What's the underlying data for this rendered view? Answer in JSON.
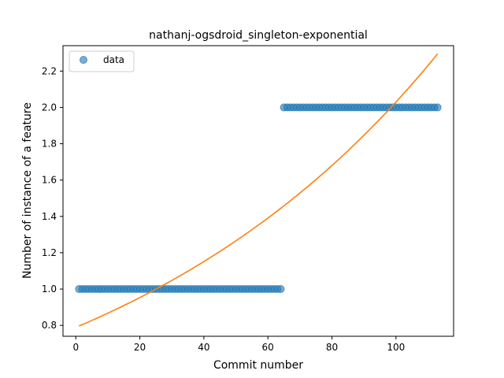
{
  "chart_data": {
    "type": "scatter",
    "title": "nathanj-ogsdroid_singleton-exponential",
    "xlabel": "Commit number",
    "ylabel": "Number of instance of a feature",
    "xlim": [
      -4,
      118
    ],
    "ylim": [
      0.74,
      2.34
    ],
    "xticks": [
      0,
      20,
      40,
      60,
      80,
      100
    ],
    "yticks": [
      0.8,
      1.0,
      1.2,
      1.4,
      1.6,
      1.8,
      2.0,
      2.2
    ],
    "xtick_labels": [
      "0",
      "20",
      "40",
      "60",
      "80",
      "100"
    ],
    "ytick_labels": [
      "0.8",
      "1.0",
      "1.2",
      "1.4",
      "1.6",
      "1.8",
      "2.0",
      "2.2"
    ],
    "legend": {
      "position": "top-left",
      "entries": [
        "data"
      ]
    },
    "grid": false,
    "series": [
      {
        "name": "data",
        "kind": "points",
        "color": "#1f77b4",
        "segments": [
          {
            "x_start": 1,
            "x_end": 64,
            "y": 1.0
          },
          {
            "x_start": 65,
            "x_end": 113,
            "y": 2.0
          }
        ]
      },
      {
        "kind": "fit-line",
        "color": "#ff7f0e",
        "function": "exponential",
        "a": 0.7889,
        "b": 0.00945,
        "x_start": 1,
        "x_end": 113
      }
    ]
  }
}
